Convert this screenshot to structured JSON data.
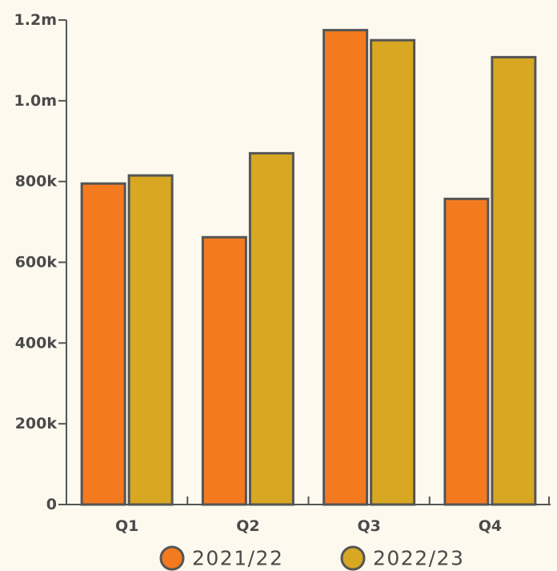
{
  "chart_data": {
    "type": "bar",
    "title": "",
    "xlabel": "",
    "ylabel": "",
    "categories": [
      "Q1",
      "Q2",
      "Q3",
      "Q4"
    ],
    "series": [
      {
        "name": "2021/22",
        "values": [
          795000,
          662000,
          1175000,
          757000
        ],
        "color": "#f47a20"
      },
      {
        "name": "2022/23",
        "values": [
          815000,
          870000,
          1150000,
          1108000
        ],
        "color": "#d8a823"
      }
    ],
    "ylim": [
      0,
      1200000
    ],
    "y_ticks": [
      {
        "value": 0,
        "label": "0"
      },
      {
        "value": 200000,
        "label": "200k"
      },
      {
        "value": 400000,
        "label": "400k"
      },
      {
        "value": 600000,
        "label": "600k"
      },
      {
        "value": 800000,
        "label": "800k"
      },
      {
        "value": 1000000,
        "label": "1.0m"
      },
      {
        "value": 1200000,
        "label": "1.2m"
      }
    ],
    "grid": false,
    "legend_position": "bottom",
    "axis_color": "#555555",
    "bar_outline_color": "#555555",
    "background": "#fdf9ef"
  }
}
